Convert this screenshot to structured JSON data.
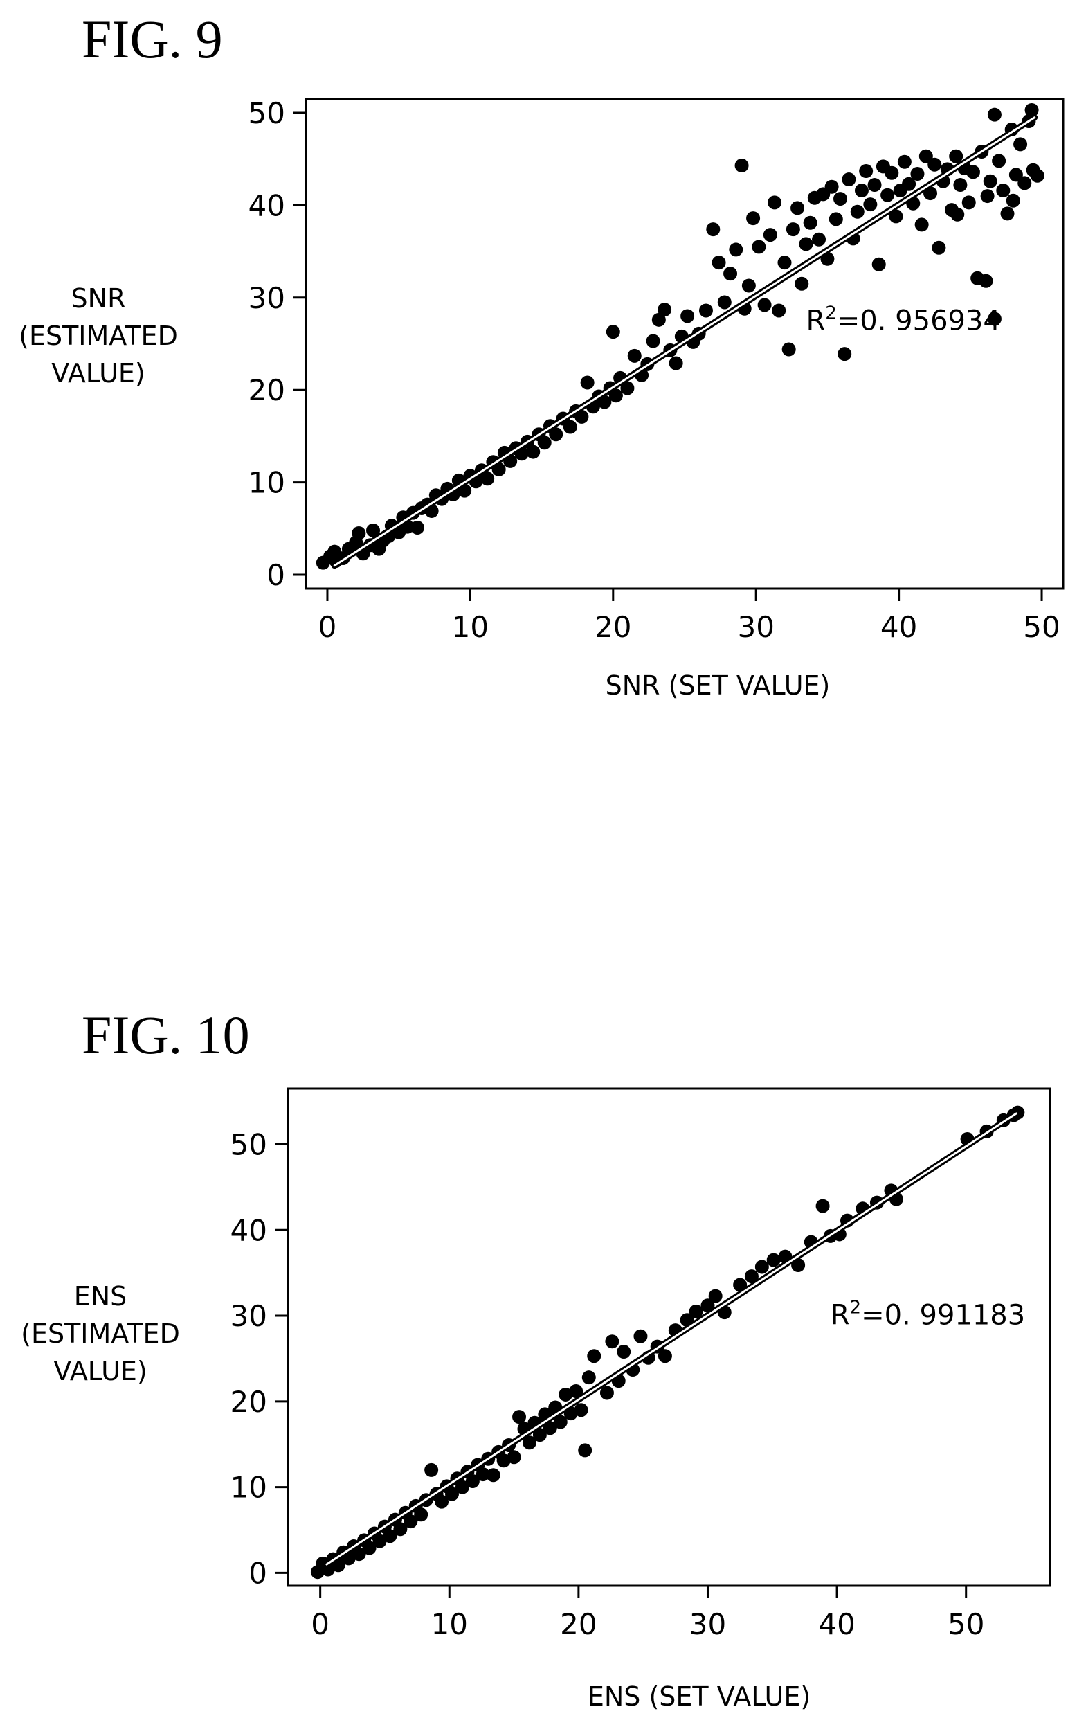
{
  "chart_data": [
    {
      "figure_label": "FIG. 9",
      "type": "scatter",
      "ylabel_lines": [
        "SNR",
        "(ESTIMATED",
        "VALUE)"
      ],
      "xlabel": "SNR (SET VALUE)",
      "xlim": [
        -1.5,
        51.5
      ],
      "ylim": [
        -1.5,
        51.5
      ],
      "xticks": [
        0,
        10,
        20,
        30,
        40,
        50
      ],
      "yticks": [
        0,
        10,
        20,
        30,
        40,
        50
      ],
      "annotation": {
        "base": "R",
        "sup": "2",
        "text": "=0. 956934",
        "x": 33.5,
        "y": 26.5
      },
      "fit_line": [
        [
          0.5,
          1.0
        ],
        [
          49.5,
          49.5
        ]
      ],
      "grid": false,
      "marker_color": "#000000",
      "points": [
        [
          -0.3,
          1.3
        ],
        [
          0.2,
          2.0
        ],
        [
          0.6,
          1.5
        ],
        [
          1.1,
          1.8
        ],
        [
          0.5,
          2.5
        ],
        [
          1.5,
          2.8
        ],
        [
          2.0,
          3.5
        ],
        [
          2.2,
          4.5
        ],
        [
          2.5,
          2.3
        ],
        [
          3.0,
          3.2
        ],
        [
          3.2,
          4.8
        ],
        [
          3.6,
          2.8
        ],
        [
          3.9,
          3.7
        ],
        [
          4.3,
          4.2
        ],
        [
          4.5,
          5.3
        ],
        [
          5.0,
          4.6
        ],
        [
          5.3,
          6.2
        ],
        [
          5.6,
          5.2
        ],
        [
          6.0,
          6.7
        ],
        [
          6.3,
          5.1
        ],
        [
          6.6,
          7.2
        ],
        [
          7.0,
          7.6
        ],
        [
          7.3,
          6.9
        ],
        [
          7.6,
          8.6
        ],
        [
          8.0,
          8.2
        ],
        [
          8.4,
          9.3
        ],
        [
          8.8,
          8.7
        ],
        [
          9.2,
          10.2
        ],
        [
          9.6,
          9.1
        ],
        [
          10.0,
          10.7
        ],
        [
          10.4,
          10.1
        ],
        [
          10.8,
          11.3
        ],
        [
          11.2,
          10.4
        ],
        [
          11.6,
          12.2
        ],
        [
          12.0,
          11.4
        ],
        [
          12.4,
          13.2
        ],
        [
          12.8,
          12.3
        ],
        [
          13.2,
          13.7
        ],
        [
          13.6,
          13.1
        ],
        [
          14.0,
          14.4
        ],
        [
          14.4,
          13.3
        ],
        [
          14.8,
          15.2
        ],
        [
          15.2,
          14.3
        ],
        [
          15.6,
          16.1
        ],
        [
          16.0,
          15.2
        ],
        [
          16.5,
          16.9
        ],
        [
          17.0,
          16.0
        ],
        [
          17.4,
          17.7
        ],
        [
          17.8,
          17.1
        ],
        [
          18.2,
          20.8
        ],
        [
          18.6,
          18.2
        ],
        [
          19.0,
          19.3
        ],
        [
          19.4,
          18.7
        ],
        [
          19.8,
          20.2
        ],
        [
          20.2,
          19.4
        ],
        [
          20.5,
          21.3
        ],
        [
          20.0,
          26.3
        ],
        [
          21.0,
          20.2
        ],
        [
          21.5,
          23.7
        ],
        [
          22.0,
          21.6
        ],
        [
          22.4,
          22.8
        ],
        [
          22.8,
          25.3
        ],
        [
          23.2,
          27.6
        ],
        [
          23.6,
          28.7
        ],
        [
          24.0,
          24.3
        ],
        [
          24.4,
          22.9
        ],
        [
          24.8,
          25.8
        ],
        [
          25.2,
          28.0
        ],
        [
          25.6,
          25.2
        ],
        [
          26.0,
          26.1
        ],
        [
          26.5,
          28.6
        ],
        [
          27.0,
          37.4
        ],
        [
          27.4,
          33.8
        ],
        [
          27.8,
          29.5
        ],
        [
          28.2,
          32.6
        ],
        [
          28.6,
          35.2
        ],
        [
          29.0,
          44.3
        ],
        [
          29.2,
          28.8
        ],
        [
          29.5,
          31.3
        ],
        [
          29.8,
          38.6
        ],
        [
          30.2,
          35.5
        ],
        [
          30.6,
          29.2
        ],
        [
          31.0,
          36.8
        ],
        [
          31.3,
          40.3
        ],
        [
          31.6,
          28.6
        ],
        [
          32.0,
          33.8
        ],
        [
          32.3,
          24.4
        ],
        [
          32.6,
          37.4
        ],
        [
          32.9,
          39.7
        ],
        [
          33.2,
          31.5
        ],
        [
          33.5,
          35.8
        ],
        [
          33.8,
          38.1
        ],
        [
          34.1,
          40.8
        ],
        [
          34.4,
          36.3
        ],
        [
          34.7,
          41.2
        ],
        [
          35.0,
          34.2
        ],
        [
          35.3,
          42.0
        ],
        [
          35.6,
          38.5
        ],
        [
          35.9,
          40.7
        ],
        [
          36.2,
          23.9
        ],
        [
          36.5,
          42.8
        ],
        [
          36.8,
          36.4
        ],
        [
          37.1,
          39.3
        ],
        [
          37.4,
          41.6
        ],
        [
          37.7,
          43.7
        ],
        [
          38.0,
          40.1
        ],
        [
          38.3,
          42.2
        ],
        [
          38.6,
          33.6
        ],
        [
          38.9,
          44.2
        ],
        [
          39.2,
          41.1
        ],
        [
          39.5,
          43.5
        ],
        [
          39.8,
          38.8
        ],
        [
          40.1,
          41.6
        ],
        [
          40.4,
          44.7
        ],
        [
          40.7,
          42.3
        ],
        [
          41.0,
          40.2
        ],
        [
          41.3,
          43.4
        ],
        [
          41.6,
          37.9
        ],
        [
          41.9,
          45.3
        ],
        [
          42.2,
          41.3
        ],
        [
          42.5,
          44.4
        ],
        [
          42.8,
          35.4
        ],
        [
          43.1,
          42.6
        ],
        [
          43.4,
          43.9
        ],
        [
          43.7,
          39.5
        ],
        [
          44.0,
          45.3
        ],
        [
          44.3,
          42.2
        ],
        [
          44.6,
          44.0
        ],
        [
          44.9,
          40.3
        ],
        [
          45.2,
          43.6
        ],
        [
          45.5,
          32.1
        ],
        [
          45.8,
          45.8
        ],
        [
          46.1,
          31.8
        ],
        [
          46.4,
          42.6
        ],
        [
          46.7,
          27.7
        ],
        [
          46.7,
          49.8
        ],
        [
          47.0,
          44.8
        ],
        [
          47.3,
          41.6
        ],
        [
          47.6,
          39.1
        ],
        [
          47.9,
          48.2
        ],
        [
          48.2,
          43.3
        ],
        [
          48.5,
          46.6
        ],
        [
          48.8,
          42.4
        ],
        [
          49.1,
          49.1
        ],
        [
          49.4,
          43.8
        ],
        [
          49.7,
          43.2
        ],
        [
          49.3,
          50.3
        ],
        [
          48.0,
          40.5
        ],
        [
          46.2,
          41.0
        ],
        [
          44.1,
          39.0
        ]
      ]
    },
    {
      "figure_label": "FIG. 10",
      "type": "scatter",
      "ylabel_lines": [
        "ENS",
        "(ESTIMATED",
        "VALUE)"
      ],
      "xlabel": "ENS (SET VALUE)",
      "xlim": [
        -2.5,
        56.5
      ],
      "ylim": [
        -1.5,
        56.5
      ],
      "xticks": [
        0,
        10,
        20,
        30,
        40,
        50
      ],
      "yticks": [
        0,
        10,
        20,
        30,
        40,
        50
      ],
      "annotation": {
        "base": "R",
        "sup": "2",
        "text": "=0. 991183",
        "x": 39.5,
        "y": 29.0
      },
      "fit_line": [
        [
          0.5,
          1.0
        ],
        [
          53.9,
          53.6
        ]
      ],
      "grid": false,
      "marker_color": "#000000",
      "points": [
        [
          -0.2,
          0.1
        ],
        [
          0.2,
          1.1
        ],
        [
          0.6,
          0.4
        ],
        [
          1.0,
          1.6
        ],
        [
          1.4,
          0.9
        ],
        [
          1.8,
          2.4
        ],
        [
          2.2,
          1.7
        ],
        [
          2.6,
          3.1
        ],
        [
          3.0,
          2.2
        ],
        [
          3.4,
          3.8
        ],
        [
          3.8,
          2.9
        ],
        [
          4.2,
          4.6
        ],
        [
          4.6,
          3.7
        ],
        [
          5.0,
          5.4
        ],
        [
          5.4,
          4.3
        ],
        [
          5.8,
          6.2
        ],
        [
          6.2,
          5.1
        ],
        [
          6.6,
          7.0
        ],
        [
          7.0,
          6.0
        ],
        [
          7.4,
          7.8
        ],
        [
          7.8,
          6.8
        ],
        [
          8.2,
          8.5
        ],
        [
          8.6,
          12.0
        ],
        [
          9.0,
          9.2
        ],
        [
          9.4,
          8.3
        ],
        [
          9.8,
          10.1
        ],
        [
          10.2,
          9.2
        ],
        [
          10.6,
          11.0
        ],
        [
          11.0,
          10.0
        ],
        [
          11.4,
          11.8
        ],
        [
          11.8,
          10.7
        ],
        [
          12.2,
          12.6
        ],
        [
          12.6,
          11.5
        ],
        [
          13.0,
          13.3
        ],
        [
          13.4,
          11.4
        ],
        [
          13.8,
          14.1
        ],
        [
          14.2,
          13.1
        ],
        [
          14.6,
          14.9
        ],
        [
          15.0,
          13.5
        ],
        [
          15.4,
          18.2
        ],
        [
          15.8,
          16.8
        ],
        [
          16.2,
          15.2
        ],
        [
          16.6,
          17.5
        ],
        [
          17.0,
          16.1
        ],
        [
          17.4,
          18.5
        ],
        [
          17.8,
          16.9
        ],
        [
          18.2,
          19.3
        ],
        [
          18.6,
          17.6
        ],
        [
          19.0,
          20.8
        ],
        [
          19.4,
          18.6
        ],
        [
          19.8,
          21.2
        ],
        [
          20.2,
          19.0
        ],
        [
          20.5,
          14.3
        ],
        [
          20.8,
          22.8
        ],
        [
          21.2,
          25.3
        ],
        [
          22.2,
          21.0
        ],
        [
          22.6,
          27.0
        ],
        [
          23.1,
          22.4
        ],
        [
          23.5,
          25.8
        ],
        [
          24.2,
          23.7
        ],
        [
          24.8,
          27.6
        ],
        [
          25.4,
          25.1
        ],
        [
          26.1,
          26.4
        ],
        [
          26.7,
          25.3
        ],
        [
          27.5,
          28.3
        ],
        [
          28.4,
          29.5
        ],
        [
          29.1,
          30.5
        ],
        [
          30.0,
          31.2
        ],
        [
          30.6,
          32.3
        ],
        [
          31.3,
          30.4
        ],
        [
          32.5,
          33.6
        ],
        [
          33.4,
          34.6
        ],
        [
          34.2,
          35.7
        ],
        [
          35.1,
          36.5
        ],
        [
          36.0,
          36.9
        ],
        [
          37.0,
          35.9
        ],
        [
          38.0,
          38.6
        ],
        [
          38.9,
          42.8
        ],
        [
          39.5,
          39.3
        ],
        [
          40.2,
          39.5
        ],
        [
          40.8,
          41.1
        ],
        [
          42.0,
          42.5
        ],
        [
          43.1,
          43.2
        ],
        [
          44.2,
          44.6
        ],
        [
          44.6,
          43.6
        ],
        [
          50.1,
          50.6
        ],
        [
          51.6,
          51.5
        ],
        [
          52.9,
          52.8
        ],
        [
          53.7,
          53.4
        ],
        [
          54.0,
          53.7
        ]
      ]
    }
  ]
}
